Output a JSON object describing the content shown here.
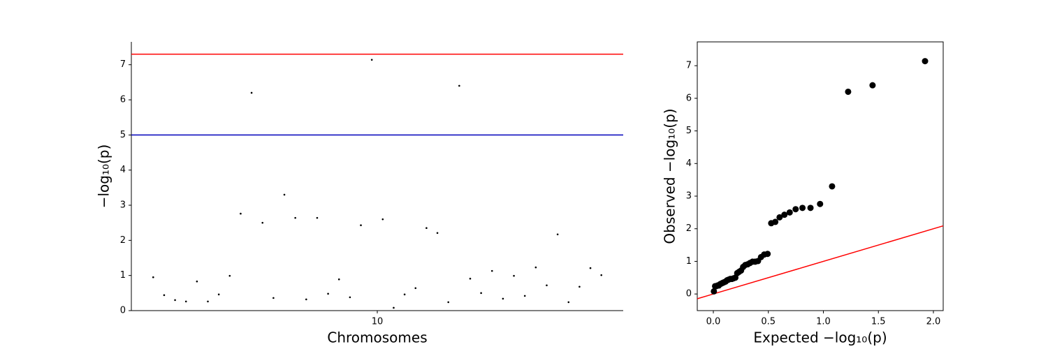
{
  "chart_data": [
    {
      "type": "scatter",
      "xlabel": "Chromosomes",
      "ylabel": "−log₁₀(p)",
      "color": "#000000",
      "marker_size": 1.3,
      "frame": "left-bottom",
      "xlim": [
        -1,
        44
      ],
      "xticks": [
        {
          "value": 21.5,
          "label": "10"
        }
      ],
      "ylim": [
        0,
        7.65
      ],
      "yticks": [
        0,
        1,
        2,
        3,
        4,
        5,
        6,
        7
      ],
      "hlines": [
        {
          "value": 7.3,
          "color": "#ff0000"
        },
        {
          "value": 5,
          "color": "#0000bb"
        }
      ],
      "x": [
        1,
        2,
        3,
        4,
        5,
        6,
        7,
        8,
        9,
        10,
        11,
        12,
        13,
        14,
        15,
        16,
        17,
        18,
        19,
        20,
        21,
        22,
        23,
        24,
        25,
        26,
        27,
        28,
        29,
        30,
        31,
        32,
        33,
        34,
        35,
        36,
        37,
        38,
        39,
        40,
        41,
        42
      ],
      "values": [
        0.95,
        0.44,
        0.3,
        0.26,
        0.83,
        0.26,
        0.46,
        0.99,
        2.76,
        6.2,
        2.5,
        0.36,
        3.3,
        2.64,
        0.32,
        2.64,
        0.48,
        0.89,
        0.38,
        2.43,
        7.14,
        2.6,
        0.08,
        0.46,
        0.64,
        2.35,
        2.21,
        0.24,
        6.4,
        0.91,
        0.5,
        1.13,
        0.34,
        0.99,
        0.42,
        1.23,
        0.72,
        2.17,
        0.24,
        0.68,
        1.21,
        1.01
      ]
    },
    {
      "type": "scatter",
      "xlabel": "Expected −log₁₀(p)",
      "ylabel": "Observed −log₁₀(p)",
      "color": "#000000",
      "marker_size": 4.5,
      "frame": "box",
      "xlim": [
        -0.146,
        2.089
      ],
      "xticks": [
        {
          "value": 0,
          "label": "0.0"
        },
        0.5,
        {
          "value": 1,
          "label": "1.0"
        },
        1.5,
        {
          "value": 2,
          "label": "2.0"
        }
      ],
      "ylim": [
        -0.51,
        7.73
      ],
      "yticks": [
        0,
        1,
        2,
        3,
        4,
        5,
        6,
        7
      ],
      "diagonal_color": "#ff0000",
      "x": [
        1.924,
        1.447,
        1.225,
        1.079,
        0.97,
        0.883,
        0.81,
        0.748,
        0.694,
        0.646,
        0.602,
        0.563,
        0.526,
        0.493,
        0.462,
        0.433,
        0.406,
        0.38,
        0.356,
        0.333,
        0.312,
        0.291,
        0.271,
        0.252,
        0.234,
        0.217,
        0.2,
        0.184,
        0.168,
        0.154,
        0.139,
        0.125,
        0.111,
        0.098,
        0.085,
        0.073,
        0.061,
        0.049,
        0.038,
        0.027,
        0.016,
        0.005
      ],
      "values": [
        7.14,
        6.4,
        6.2,
        3.3,
        2.76,
        2.64,
        2.64,
        2.6,
        2.5,
        2.43,
        2.35,
        2.21,
        2.17,
        1.23,
        1.21,
        1.13,
        1.01,
        0.99,
        0.99,
        0.95,
        0.91,
        0.89,
        0.83,
        0.72,
        0.68,
        0.64,
        0.5,
        0.48,
        0.46,
        0.46,
        0.44,
        0.42,
        0.38,
        0.36,
        0.34,
        0.32,
        0.3,
        0.26,
        0.26,
        0.24,
        0.24,
        0.08
      ]
    }
  ]
}
